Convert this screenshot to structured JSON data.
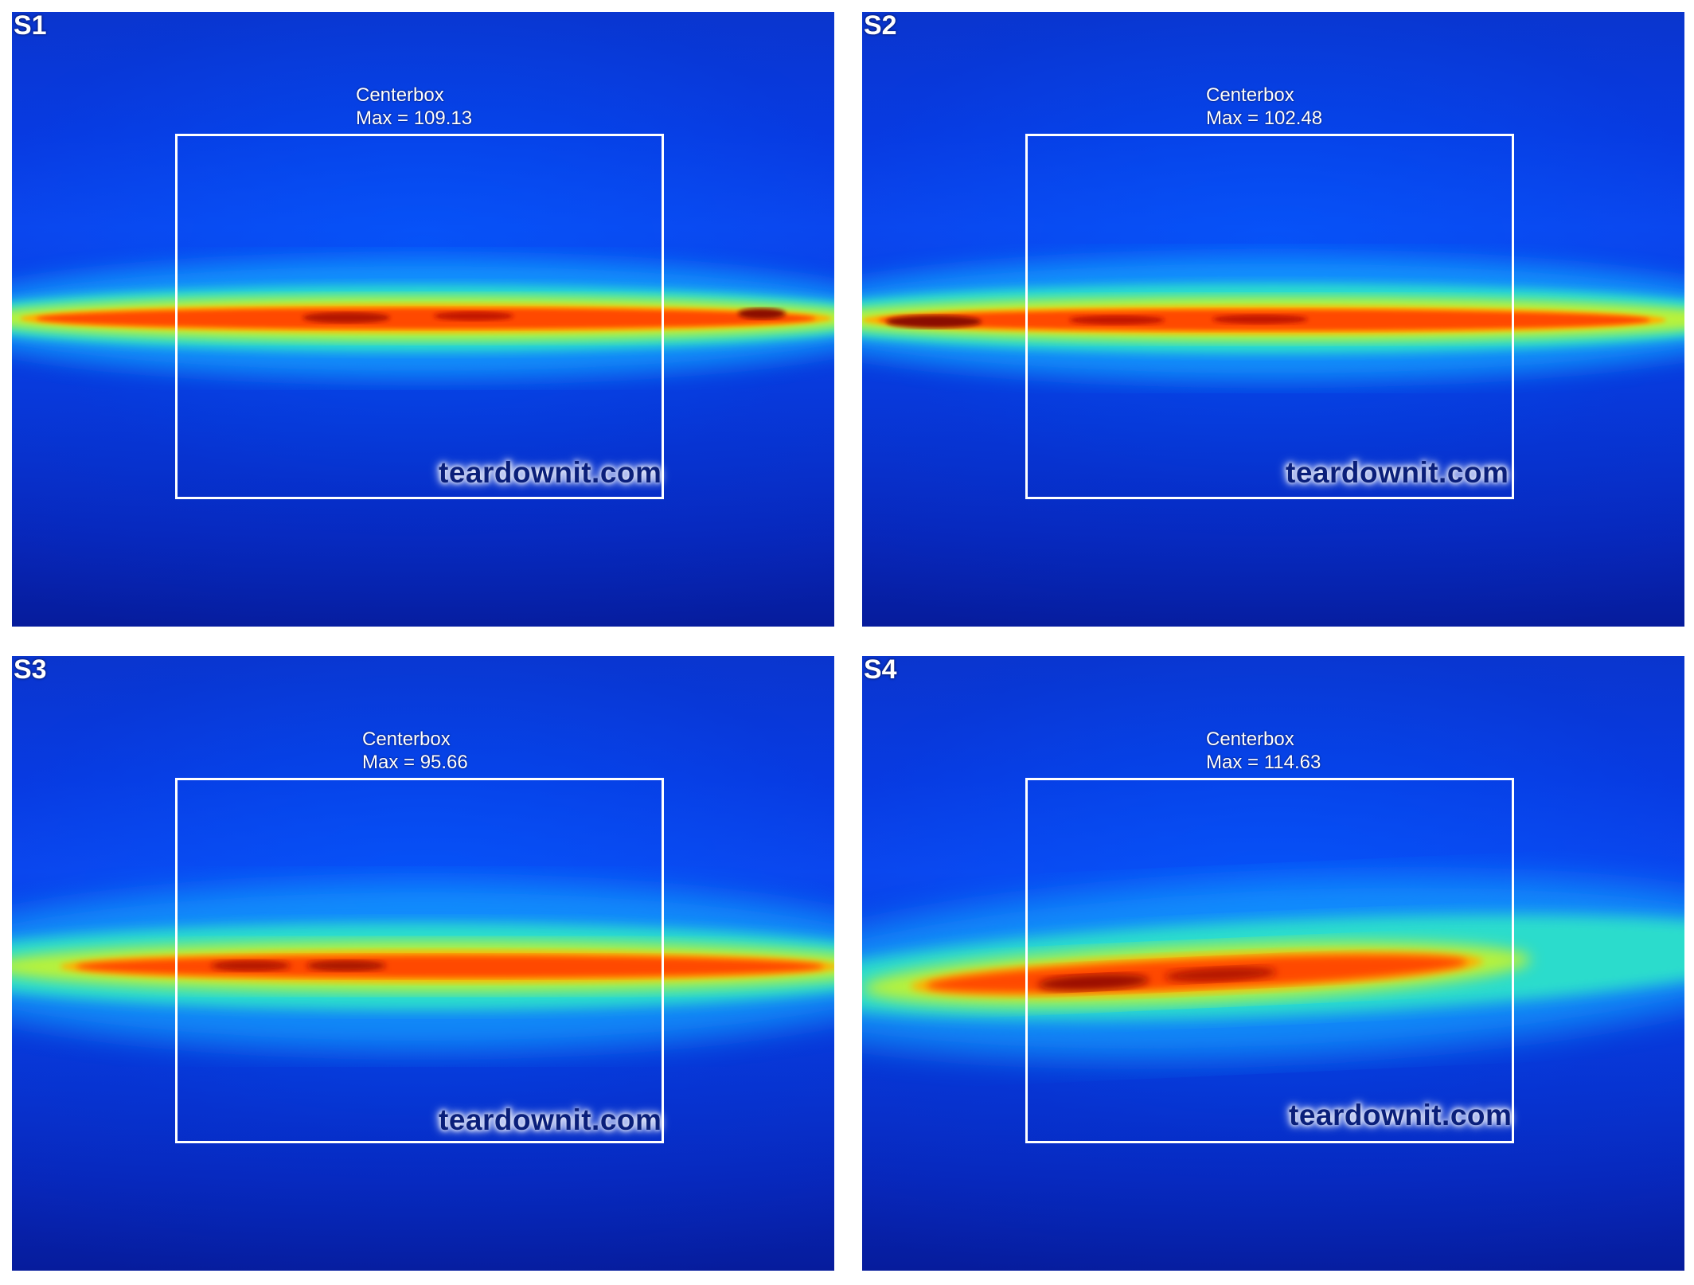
{
  "panels": [
    {
      "label": "S1",
      "caption_title": "Centerbox",
      "caption_value": "Max = 109.13",
      "watermark": "teardownit.com"
    },
    {
      "label": "S2",
      "caption_title": "Centerbox",
      "caption_value": "Max = 102.48",
      "watermark": "teardownit.com"
    },
    {
      "label": "S3",
      "caption_title": "Centerbox",
      "caption_value": "Max = 95.66",
      "watermark": "teardownit.com"
    },
    {
      "label": "S4",
      "caption_title": "Centerbox",
      "caption_value": "Max = 114.63",
      "watermark": "teardownit.com"
    }
  ],
  "colors": {
    "background_blue": "#0a3ae0",
    "beam_green": "#3fe08a",
    "beam_orange": "#ff5a00",
    "beam_core": "#a01000",
    "box_outline": "#ffffff"
  }
}
